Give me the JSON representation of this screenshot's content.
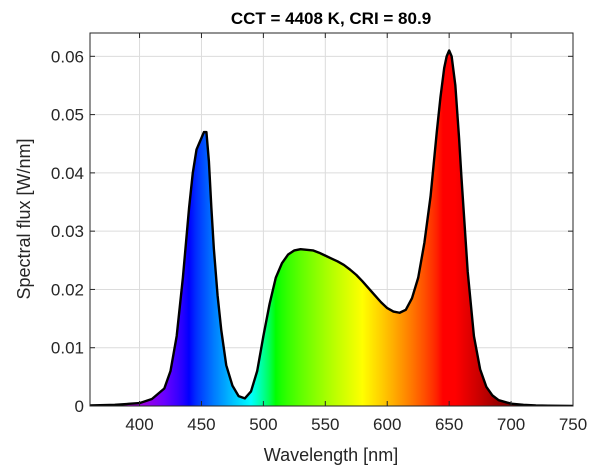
{
  "chart_data": {
    "type": "area",
    "title": "CCT = 4408 K, CRI = 80.9",
    "xlabel": "Wavelength [nm]",
    "ylabel": "Spectral flux [W/nm]",
    "xlim": [
      360,
      750
    ],
    "ylim": [
      0,
      0.064
    ],
    "xticks": [
      400,
      450,
      500,
      550,
      600,
      650,
      700,
      750
    ],
    "yticks": [
      0,
      0.01,
      0.02,
      0.03,
      0.04,
      0.05,
      0.06
    ],
    "ytick_labels": [
      "0",
      "0.01",
      "0.02",
      "0.03",
      "0.04",
      "0.05",
      "0.06"
    ],
    "grid": true,
    "fill": "spectral colors by wavelength",
    "series": [
      {
        "x": [
          360,
          380,
          400,
          410,
          420,
          425,
          430,
          435,
          440,
          443,
          446,
          448,
          450,
          452,
          454,
          456,
          458,
          460,
          463,
          466,
          470,
          475,
          480,
          485,
          490,
          495,
          500,
          505,
          510,
          515,
          520,
          525,
          530,
          535,
          540,
          545,
          550,
          555,
          560,
          565,
          570,
          575,
          580,
          585,
          590,
          595,
          600,
          605,
          610,
          615,
          620,
          625,
          630,
          635,
          640,
          643,
          646,
          648,
          650,
          652,
          655,
          658,
          660,
          665,
          670,
          675,
          680,
          685,
          690,
          700,
          710,
          720,
          730,
          750
        ],
        "y": [
          0.0001,
          0.0002,
          0.0005,
          0.0012,
          0.003,
          0.006,
          0.012,
          0.022,
          0.034,
          0.04,
          0.044,
          0.045,
          0.046,
          0.047,
          0.047,
          0.042,
          0.034,
          0.027,
          0.019,
          0.013,
          0.007,
          0.0035,
          0.0017,
          0.0013,
          0.0025,
          0.006,
          0.012,
          0.0175,
          0.022,
          0.0245,
          0.026,
          0.0267,
          0.0269,
          0.0268,
          0.0267,
          0.0263,
          0.0258,
          0.0253,
          0.0248,
          0.0242,
          0.0234,
          0.0225,
          0.0214,
          0.0202,
          0.019,
          0.0178,
          0.0168,
          0.0162,
          0.016,
          0.0165,
          0.0185,
          0.022,
          0.028,
          0.036,
          0.047,
          0.053,
          0.058,
          0.06,
          0.061,
          0.06,
          0.055,
          0.046,
          0.039,
          0.023,
          0.012,
          0.0063,
          0.0033,
          0.0018,
          0.001,
          0.0004,
          0.0002,
          0.0001,
          5e-05,
          0.0
        ]
      }
    ]
  }
}
